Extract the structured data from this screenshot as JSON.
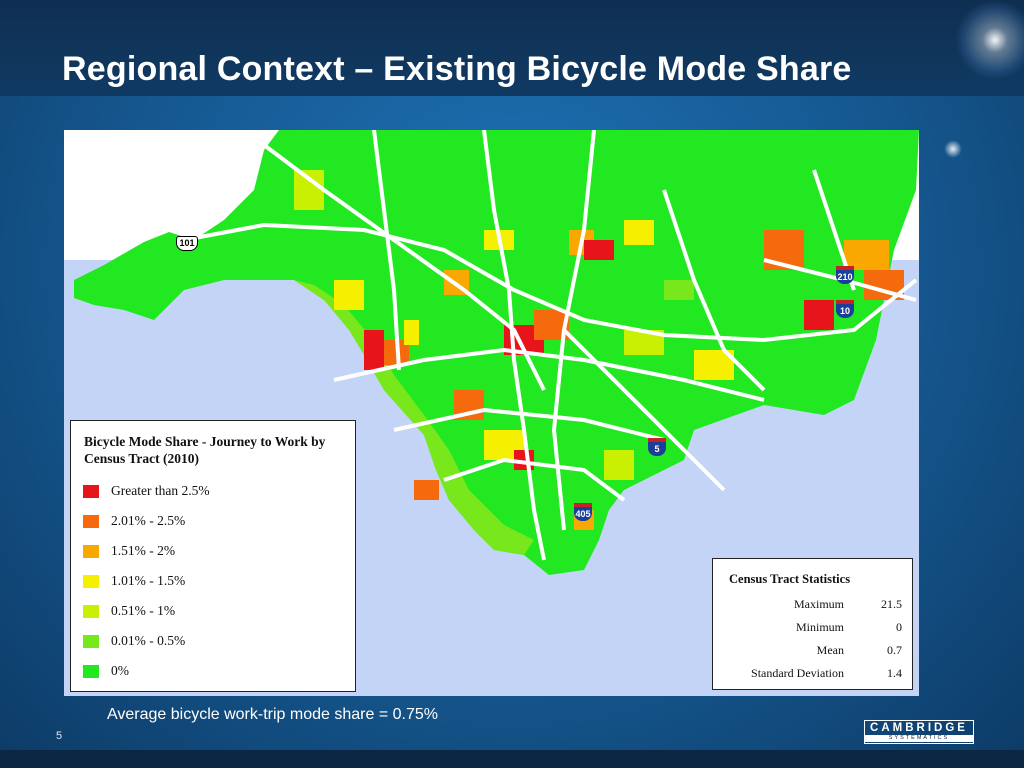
{
  "slide": {
    "title": "Regional Context – Existing Bicycle Mode Share",
    "caption": "Average bicycle work-trip mode share = 0.75%",
    "slide_number": "5"
  },
  "map": {
    "legend": {
      "title": "Bicycle Mode Share - Journey to Work by Census Tract (2010)",
      "items": [
        {
          "label": "Greater than 2.5%",
          "color": "#e8141c"
        },
        {
          "label": "2.01% - 2.5%",
          "color": "#f46a0c"
        },
        {
          "label": "1.51% - 2%",
          "color": "#f8a800"
        },
        {
          "label": "1.01% - 1.5%",
          "color": "#f4f000"
        },
        {
          "label": "0.51% - 1%",
          "color": "#c8f000"
        },
        {
          "label": "0.01% - 0.5%",
          "color": "#78e81c"
        },
        {
          "label": "0%",
          "color": "#22e822"
        }
      ]
    },
    "stats": {
      "title": "Census Tract Statistics",
      "rows": [
        {
          "label": "Maximum",
          "value": "21.5"
        },
        {
          "label": "Minimum",
          "value": "0"
        },
        {
          "label": "Mean",
          "value": "0.7"
        },
        {
          "label": "Standard Deviation",
          "value": "1.4"
        }
      ]
    },
    "shields": {
      "us_101": "101",
      "i_210": "210",
      "i_10": "10",
      "i_5": "5",
      "i_405": "405"
    },
    "colors": {
      "ocean": "#c4d4f6",
      "land_outside": "#ffffff"
    }
  },
  "logo": {
    "name": "CAMBRIDGE",
    "sub": "SYSTEMATICS"
  }
}
